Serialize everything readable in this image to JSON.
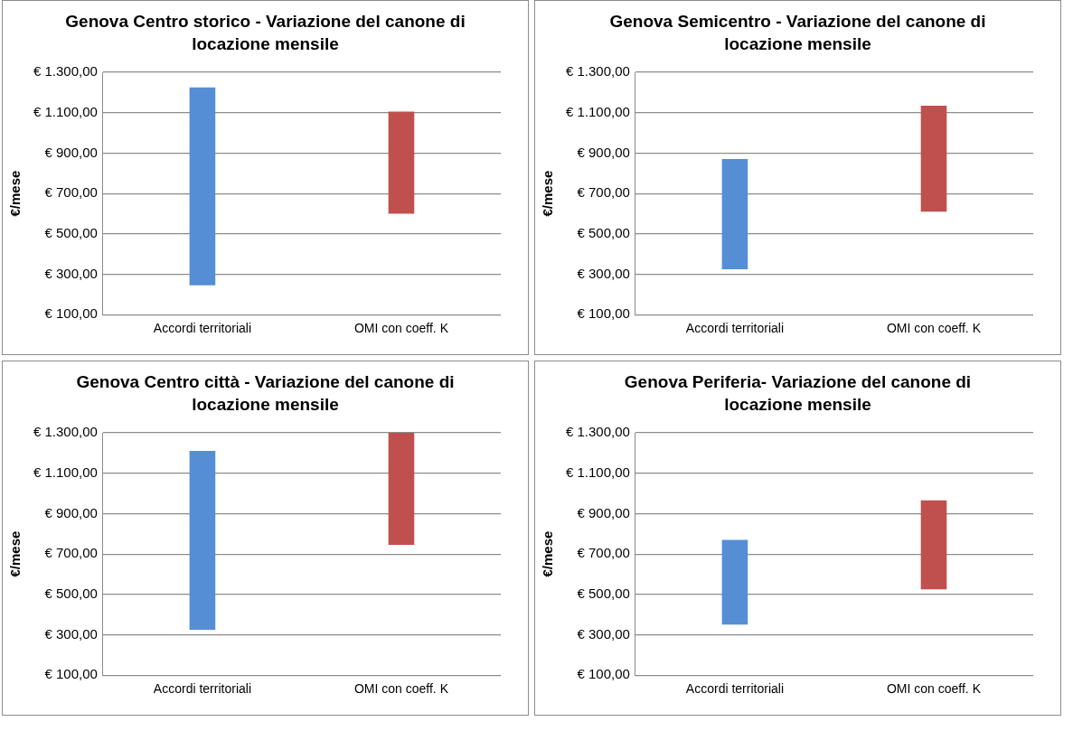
{
  "chart_data": [
    {
      "type": "bar",
      "title": "Genova Centro storico - Variazione del canone di locazione mensile",
      "ylabel": "€/mese",
      "categories": [
        "Accordi territoriali",
        "OMI con coeff. K"
      ],
      "base": [
        245,
        600
      ],
      "values": [
        980,
        505
      ],
      "colors": [
        "#558ed5",
        "#c0504d"
      ],
      "ylim": [
        100,
        1300
      ],
      "yticks": [
        {
          "value": 100,
          "label": "€ 100,00"
        },
        {
          "value": 300,
          "label": "€ 300,00"
        },
        {
          "value": 500,
          "label": "€ 500,00"
        },
        {
          "value": 700,
          "label": "€ 700,00"
        },
        {
          "value": 900,
          "label": "€ 900,00"
        },
        {
          "value": 1100,
          "label": "€ 1.100,00"
        },
        {
          "value": 1300,
          "label": "€ 1.300,00"
        }
      ],
      "grid": "y",
      "legend": false
    },
    {
      "type": "bar",
      "title": "Genova Semicentro - Variazione del canone di locazione mensile",
      "ylabel": "€/mese",
      "categories": [
        "Accordi territoriali",
        "OMI con coeff. K"
      ],
      "base": [
        325,
        610
      ],
      "values": [
        545,
        525
      ],
      "colors": [
        "#558ed5",
        "#c0504d"
      ],
      "ylim": [
        100,
        1300
      ],
      "yticks": [
        {
          "value": 100,
          "label": "€ 100,00"
        },
        {
          "value": 300,
          "label": "€ 300,00"
        },
        {
          "value": 500,
          "label": "€ 500,00"
        },
        {
          "value": 700,
          "label": "€ 700,00"
        },
        {
          "value": 900,
          "label": "€ 900,00"
        },
        {
          "value": 1100,
          "label": "€ 1.100,00"
        },
        {
          "value": 1300,
          "label": "€ 1.300,00"
        }
      ],
      "grid": "y",
      "legend": false
    },
    {
      "type": "bar",
      "title": "Genova Centro città - Variazione del canone di locazione mensile",
      "ylabel": "€/mese",
      "categories": [
        "Accordi territoriali",
        "OMI con coeff. K"
      ],
      "base": [
        325,
        745
      ],
      "values": [
        885,
        555
      ],
      "colors": [
        "#558ed5",
        "#c0504d"
      ],
      "ylim": [
        100,
        1300
      ],
      "yticks": [
        {
          "value": 100,
          "label": "€ 100,00"
        },
        {
          "value": 300,
          "label": "€ 300,00"
        },
        {
          "value": 500,
          "label": "€ 500,00"
        },
        {
          "value": 700,
          "label": "€ 700,00"
        },
        {
          "value": 900,
          "label": "€ 900,00"
        },
        {
          "value": 1100,
          "label": "€ 1.100,00"
        },
        {
          "value": 1300,
          "label": "€ 1.300,00"
        }
      ],
      "grid": "y",
      "legend": false
    },
    {
      "type": "bar",
      "title": "Genova Periferia- Variazione del canone di locazione mensile",
      "ylabel": "€/mese",
      "categories": [
        "Accordi territoriali",
        "OMI con coeff. K"
      ],
      "base": [
        350,
        525
      ],
      "values": [
        420,
        440
      ],
      "colors": [
        "#558ed5",
        "#c0504d"
      ],
      "ylim": [
        100,
        1300
      ],
      "yticks": [
        {
          "value": 100,
          "label": "€ 100,00"
        },
        {
          "value": 300,
          "label": "€ 300,00"
        },
        {
          "value": 500,
          "label": "€ 500,00"
        },
        {
          "value": 700,
          "label": "€ 700,00"
        },
        {
          "value": 900,
          "label": "€ 900,00"
        },
        {
          "value": 1100,
          "label": "€ 1.100,00"
        },
        {
          "value": 1300,
          "label": "€ 1.300,00"
        }
      ],
      "grid": "y",
      "legend": false
    }
  ]
}
